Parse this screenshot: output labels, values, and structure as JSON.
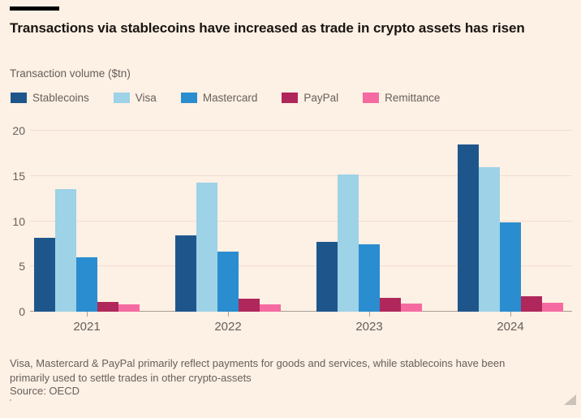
{
  "chart_data": {
    "type": "bar",
    "title": "Transactions via stablecoins have increased as trade in crypto assets has risen",
    "subtitle": "Transaction volume ($tn)",
    "categories": [
      "2021",
      "2022",
      "2023",
      "2024"
    ],
    "series": [
      {
        "name": "Stablecoins",
        "color": "#1e568c",
        "values": [
          8.2,
          8.4,
          7.7,
          18.5
        ]
      },
      {
        "name": "Visa",
        "color": "#9dd2e7",
        "values": [
          13.5,
          14.3,
          15.2,
          16.0
        ]
      },
      {
        "name": "Mastercard",
        "color": "#2a8dcf",
        "values": [
          6.0,
          6.6,
          7.4,
          9.9
        ]
      },
      {
        "name": "PayPal",
        "color": "#b0275b",
        "values": [
          1.1,
          1.4,
          1.5,
          1.7
        ]
      },
      {
        "name": "Remittance",
        "color": "#f56ba1",
        "values": [
          0.8,
          0.85,
          0.9,
          0.95
        ]
      }
    ],
    "xlabel": "",
    "ylabel": "Transaction volume ($tn)",
    "yticks": [
      0,
      5,
      10,
      15,
      20
    ],
    "ylim": [
      0,
      21
    ],
    "grid": true,
    "legend_position": "top"
  },
  "footer": {
    "note": "Visa, Mastercard & PayPal primarily reflect payments for goods and services, while stablecoins have been primarily used to settle trades in other crypto-assets",
    "source": "Source: OECD"
  },
  "colors": {
    "background": "#fdf0e4",
    "title_text": "#181512",
    "secondary_text": "#66605c",
    "gridline": "#f1ddcf",
    "axis": "#a79e97",
    "brand_bar": "#000000"
  }
}
